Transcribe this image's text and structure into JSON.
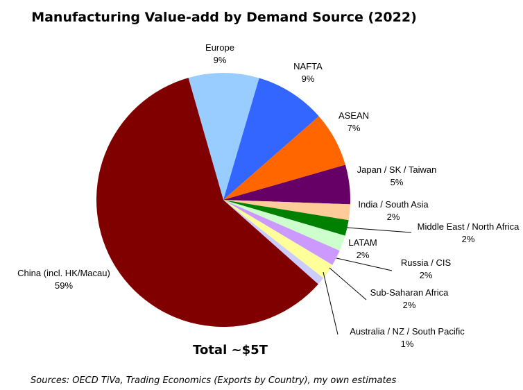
{
  "chart_data": {
    "type": "pie",
    "title": "Manufacturing Value-add by Demand Source (2022)",
    "annotation": "Total ~$5T",
    "source": "Sources: OECD TiVa, Trading Economics (Exports by Country),  my own estimates",
    "slices": [
      {
        "label": "Europe",
        "value": 9,
        "pct": "9%",
        "color": "#99CCFF"
      },
      {
        "label": "NAFTA",
        "value": 9,
        "pct": "9%",
        "color": "#3366FF"
      },
      {
        "label": "ASEAN",
        "value": 7,
        "pct": "7%",
        "color": "#FF6600"
      },
      {
        "label": "Japan / SK / Taiwan",
        "value": 5,
        "pct": "5%",
        "color": "#660066"
      },
      {
        "label": "India / South Asia",
        "value": 2,
        "pct": "2%",
        "color": "#FFCC99"
      },
      {
        "label": "Middle East / North Africa",
        "value": 2,
        "pct": "2%",
        "color": "#008000"
      },
      {
        "label": "LATAM",
        "value": 2,
        "pct": "2%",
        "color": "#CCFFCC"
      },
      {
        "label": "Russia / CIS",
        "value": 2,
        "pct": "2%",
        "color": "#CC99FF"
      },
      {
        "label": "Sub-Saharan Africa",
        "value": 2,
        "pct": "2%",
        "color": "#FFFF99"
      },
      {
        "label": "Australia / NZ / South Pacific",
        "value": 1,
        "pct": "1%",
        "color": "#CCCCFF"
      },
      {
        "label": "China (incl. HK/Macau)",
        "value": 59,
        "pct": "59%",
        "color": "#800000"
      }
    ]
  }
}
